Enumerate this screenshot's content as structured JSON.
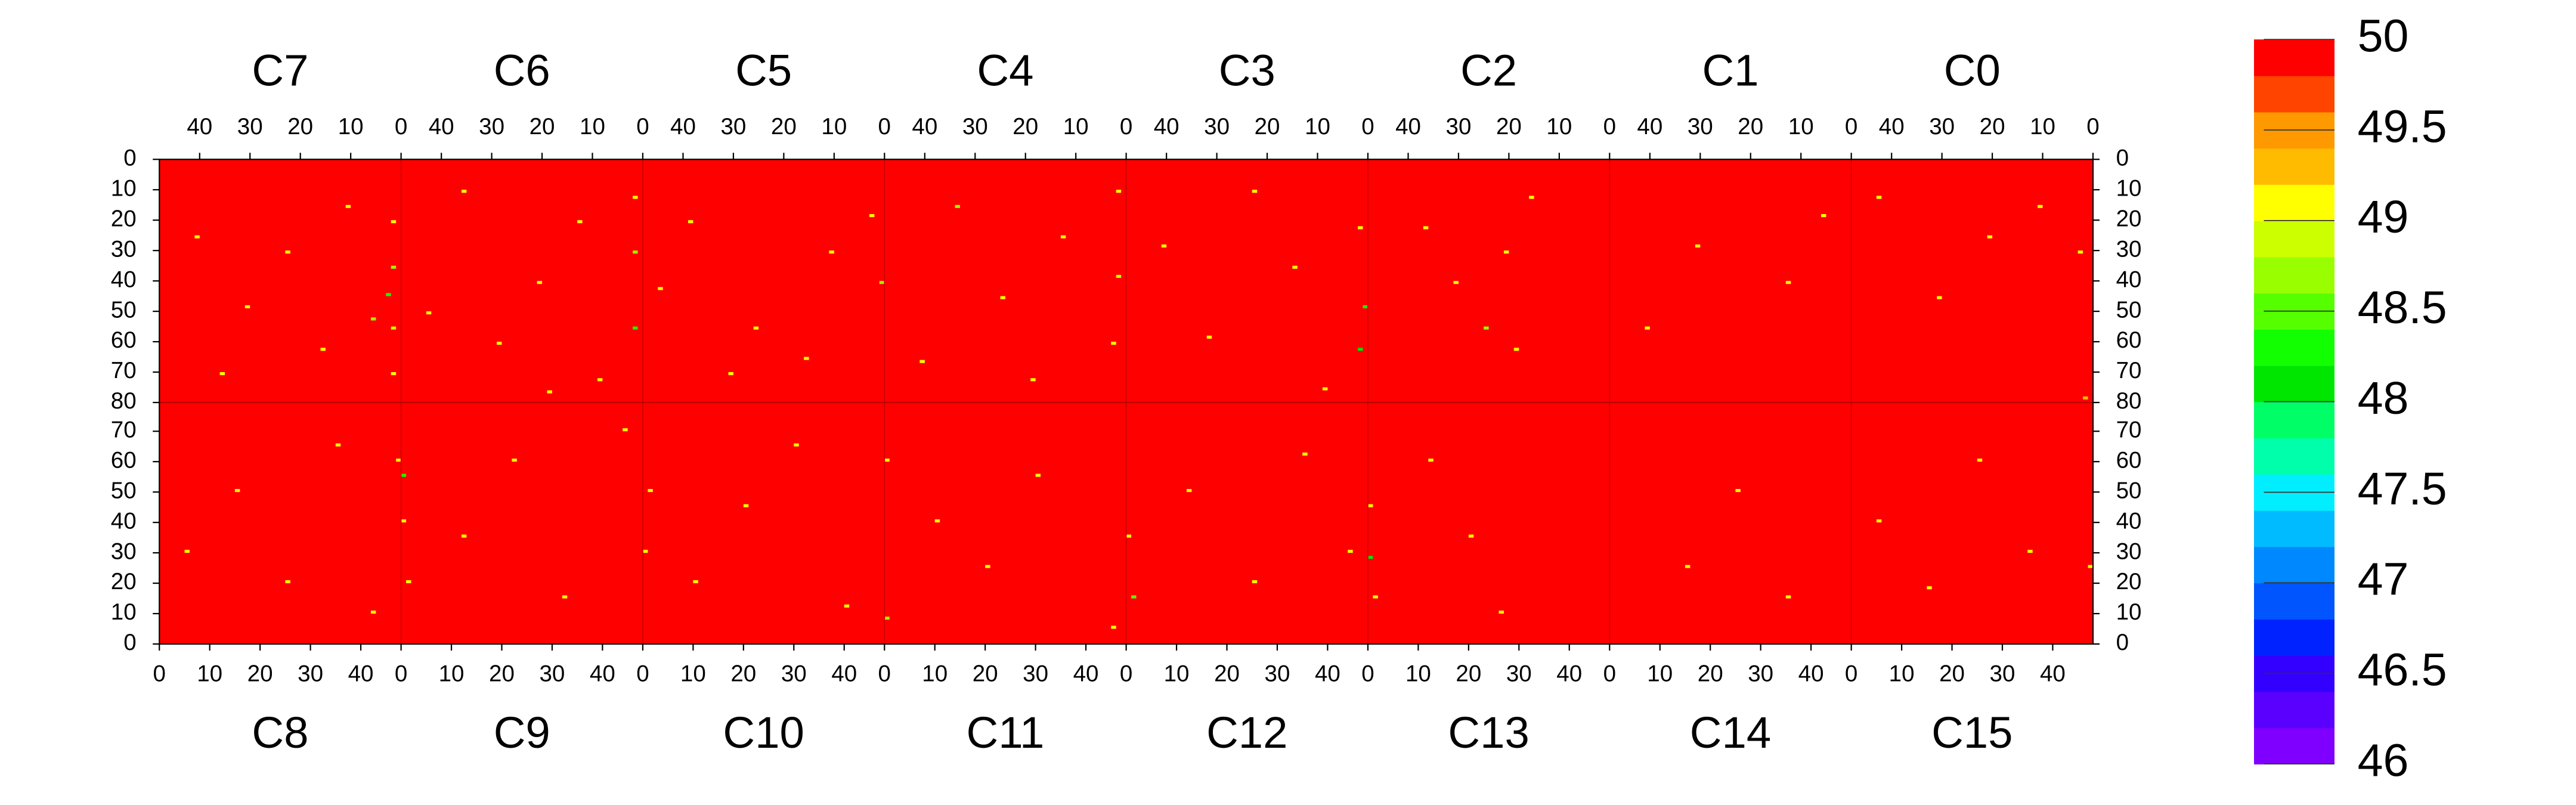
{
  "chart_data": {
    "type": "heatmap",
    "base_value": 50,
    "xlim": [
      0,
      48
    ],
    "xticks": [
      0,
      10,
      20,
      30,
      40
    ],
    "ylim": [
      0,
      80
    ],
    "yticks": [
      0,
      10,
      20,
      30,
      40,
      50,
      60,
      70,
      80
    ],
    "zlim": [
      46,
      50
    ],
    "zticks": [
      46,
      46.5,
      47,
      47.5,
      48,
      48.5,
      49,
      49.5,
      50
    ],
    "colors": [
      "#7f00ff",
      "#5a00ff",
      "#3300ff",
      "#0022ff",
      "#0055ff",
      "#0088ff",
      "#00bbff",
      "#00eeff",
      "#00ffaa",
      "#00ff66",
      "#00e600",
      "#11ff00",
      "#55ff00",
      "#99ff00",
      "#ccff00",
      "#ffff00",
      "#ffbb00",
      "#ff9900",
      "#ff4400",
      "#ff0000"
    ],
    "top_chips": [
      {
        "name": "C7",
        "cells": [
          [
            1,
            20,
            49
          ],
          [
            1,
            35,
            48.7
          ],
          [
            2,
            44,
            48.2
          ],
          [
            1,
            55,
            48.9
          ],
          [
            1,
            70,
            49
          ],
          [
            10,
            15,
            49
          ],
          [
            22,
            30,
            49
          ],
          [
            30,
            48,
            49.1
          ],
          [
            15,
            62,
            49
          ],
          [
            40,
            25,
            49
          ],
          [
            35,
            70,
            49
          ],
          [
            5,
            52,
            48.6
          ]
        ]
      },
      {
        "name": "C6",
        "cells": [
          [
            1,
            12,
            49
          ],
          [
            1,
            30,
            48.8
          ],
          [
            1,
            55,
            48.4
          ],
          [
            12,
            20,
            49
          ],
          [
            20,
            40,
            49
          ],
          [
            28,
            60,
            49.1
          ],
          [
            35,
            10,
            49
          ],
          [
            42,
            50,
            49
          ],
          [
            8,
            72,
            49
          ],
          [
            18,
            76,
            49
          ]
        ]
      },
      {
        "name": "C5",
        "cells": [
          [
            2,
            18,
            49
          ],
          [
            0,
            40,
            48.8
          ],
          [
            10,
            30,
            49
          ],
          [
            25,
            55,
            49
          ],
          [
            38,
            20,
            49
          ],
          [
            30,
            70,
            49
          ],
          [
            15,
            65,
            49.1
          ],
          [
            44,
            42,
            49
          ]
        ]
      },
      {
        "name": "C4",
        "cells": [
          [
            1,
            10,
            49
          ],
          [
            1,
            38,
            48.9
          ],
          [
            2,
            60,
            49
          ],
          [
            12,
            25,
            49
          ],
          [
            24,
            45,
            49
          ],
          [
            33,
            15,
            48.6
          ],
          [
            40,
            66,
            49
          ],
          [
            18,
            72,
            49
          ]
        ]
      },
      {
        "name": "C3",
        "cells": [
          [
            1,
            22,
            49
          ],
          [
            0,
            48,
            48.3
          ],
          [
            1,
            62,
            48.1
          ],
          [
            14,
            35,
            49
          ],
          [
            22,
            10,
            49
          ],
          [
            31,
            58,
            49
          ],
          [
            40,
            28,
            49
          ],
          [
            8,
            75,
            49
          ]
        ]
      },
      {
        "name": "C2",
        "cells": [
          [
            15,
            12,
            49
          ],
          [
            20,
            30,
            49
          ],
          [
            24,
            55,
            48.7
          ],
          [
            18,
            62,
            49
          ],
          [
            30,
            40,
            49
          ],
          [
            36,
            22,
            49
          ]
        ]
      },
      {
        "name": "C1",
        "cells": [
          [
            5,
            18,
            49
          ],
          [
            12,
            40,
            49
          ],
          [
            30,
            28,
            49
          ],
          [
            40,
            55,
            49
          ]
        ]
      },
      {
        "name": "C0",
        "cells": [
          [
            2,
            30,
            49
          ],
          [
            10,
            15,
            49
          ],
          [
            20,
            25,
            49
          ],
          [
            30,
            45,
            49
          ],
          [
            42,
            12,
            49
          ],
          [
            1,
            78,
            49.2
          ]
        ]
      }
    ],
    "bottom_chips": [
      {
        "name": "C8",
        "cells": [
          [
            47,
            60,
            49
          ],
          [
            5,
            30,
            49
          ],
          [
            15,
            50,
            49
          ],
          [
            25,
            20,
            49
          ],
          [
            35,
            65,
            49
          ],
          [
            42,
            10,
            49
          ]
        ]
      },
      {
        "name": "C9",
        "cells": [
          [
            0,
            40,
            49
          ],
          [
            0,
            55,
            48.2
          ],
          [
            1,
            20,
            49
          ],
          [
            12,
            35,
            49
          ],
          [
            22,
            60,
            49
          ],
          [
            32,
            15,
            49
          ],
          [
            44,
            70,
            49
          ]
        ]
      },
      {
        "name": "C10",
        "cells": [
          [
            0,
            30,
            49
          ],
          [
            1,
            50,
            49
          ],
          [
            10,
            20,
            49
          ],
          [
            20,
            45,
            49
          ],
          [
            30,
            65,
            49
          ],
          [
            40,
            12,
            49
          ]
        ]
      },
      {
        "name": "C11",
        "cells": [
          [
            0,
            60,
            49
          ],
          [
            0,
            8,
            48.8
          ],
          [
            10,
            40,
            49
          ],
          [
            20,
            25,
            49
          ],
          [
            30,
            55,
            49
          ],
          [
            45,
            5,
            49
          ]
        ]
      },
      {
        "name": "C12",
        "cells": [
          [
            0,
            35,
            49
          ],
          [
            1,
            15,
            48.5
          ],
          [
            12,
            50,
            49
          ],
          [
            25,
            20,
            49
          ],
          [
            35,
            62,
            49
          ],
          [
            44,
            30,
            49
          ]
        ]
      },
      {
        "name": "C13",
        "cells": [
          [
            0,
            28,
            48
          ],
          [
            0,
            45,
            49
          ],
          [
            1,
            15,
            49
          ],
          [
            12,
            60,
            49
          ],
          [
            20,
            35,
            49
          ],
          [
            26,
            10,
            49
          ]
        ]
      },
      {
        "name": "C14",
        "cells": [
          [
            15,
            25,
            49
          ],
          [
            25,
            50,
            49
          ],
          [
            35,
            15,
            49
          ]
        ]
      },
      {
        "name": "C15",
        "cells": [
          [
            5,
            40,
            49
          ],
          [
            15,
            18,
            49
          ],
          [
            25,
            60,
            49
          ],
          [
            35,
            30,
            49
          ],
          [
            47,
            25,
            49
          ]
        ]
      }
    ]
  }
}
